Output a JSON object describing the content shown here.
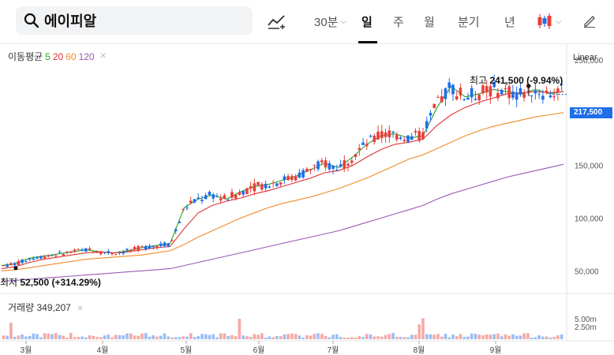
{
  "search": {
    "stock_name": "에이피알"
  },
  "toolbar": {
    "interval_30m": "30분",
    "day": "일",
    "week": "주",
    "month": "월",
    "quarter": "분기",
    "year": "년"
  },
  "legend": {
    "ma_title": "이동평균",
    "ma": [
      {
        "label": "5",
        "color": "#2ca02c"
      },
      {
        "label": "20",
        "color": "#e03131"
      },
      {
        "label": "60",
        "color": "#f08c28"
      },
      {
        "label": "120",
        "color": "#9b59b6"
      }
    ],
    "volume_title": "거래량",
    "volume_value": "349,207"
  },
  "scale_mode": "Linear",
  "current_price_tag": "217,500",
  "high": {
    "prefix": "최고",
    "value": "241,500",
    "change": "(-9.94%)"
  },
  "low": {
    "prefix": "최저",
    "value": "52,500",
    "change": "(+314.29%)"
  },
  "colors": {
    "up": "#e8403a",
    "down": "#1e6ee8",
    "accent": "#1e6ee8"
  },
  "chart_data": {
    "type": "candlestick",
    "y_axis_labels": [
      "250,000",
      "200,000",
      "150,000",
      "100,000",
      "50,000"
    ],
    "y_axis_values": [
      250000,
      200000,
      150000,
      100000,
      50000
    ],
    "ylim": [
      30000,
      262000
    ],
    "volume_axis_labels": [
      "5.00m",
      "2.50m"
    ],
    "x_axis_labels": [
      "3월",
      "4월",
      "5월",
      "6월",
      "7월",
      "8월",
      "9월"
    ],
    "series": [
      {
        "name": "5",
        "values": [
          55000,
          57000,
          62000,
          64000,
          66000,
          68000,
          70000,
          68000,
          67000,
          69000,
          72000,
          74000,
          76000,
          110000,
          118000,
          122000,
          118000,
          125000,
          130000,
          132000,
          136000,
          140000,
          146000,
          152000,
          148000,
          158000,
          170000,
          178000,
          180000,
          176000,
          178000,
          205000,
          225000,
          215000,
          218000,
          222000,
          220000,
          218000,
          222000,
          218000,
          220000
        ]
      },
      {
        "name": "20",
        "values": [
          52000,
          54000,
          58000,
          61000,
          63000,
          65000,
          67000,
          68000,
          67000,
          68000,
          70000,
          72000,
          73000,
          90000,
          105000,
          112000,
          116000,
          119000,
          123000,
          126000,
          130000,
          134000,
          138000,
          143000,
          145000,
          150000,
          158000,
          165000,
          170000,
          172000,
          175000,
          188000,
          198000,
          205000,
          210000,
          214000,
          218000,
          219000,
          220000,
          219000,
          220000
        ]
      },
      {
        "name": "60",
        "values": [
          50000,
          51000,
          53000,
          55000,
          57000,
          59000,
          61000,
          62000,
          63000,
          64000,
          65000,
          67000,
          69000,
          75000,
          82000,
          88000,
          94000,
          100000,
          105000,
          110000,
          114000,
          117000,
          120000,
          124000,
          128000,
          133000,
          138000,
          144000,
          150000,
          156000,
          160000,
          166000,
          172000,
          178000,
          183000,
          187000,
          190000,
          193000,
          196000,
          198000,
          200000
        ]
      },
      {
        "name": "120",
        "values": [
          40000,
          41000,
          42000,
          43000,
          44000,
          45000,
          46000,
          47000,
          48000,
          49000,
          50000,
          51000,
          52000,
          55000,
          58000,
          61000,
          64000,
          67000,
          70000,
          73000,
          76000,
          79000,
          82000,
          85000,
          88000,
          92000,
          96000,
          100000,
          104000,
          108000,
          112000,
          118000,
          123000,
          127000,
          131000,
          135000,
          139000,
          142000,
          145000,
          148000,
          151000
        ]
      }
    ],
    "high_value": 241500,
    "low_value": 52500,
    "current_value": 217500
  }
}
